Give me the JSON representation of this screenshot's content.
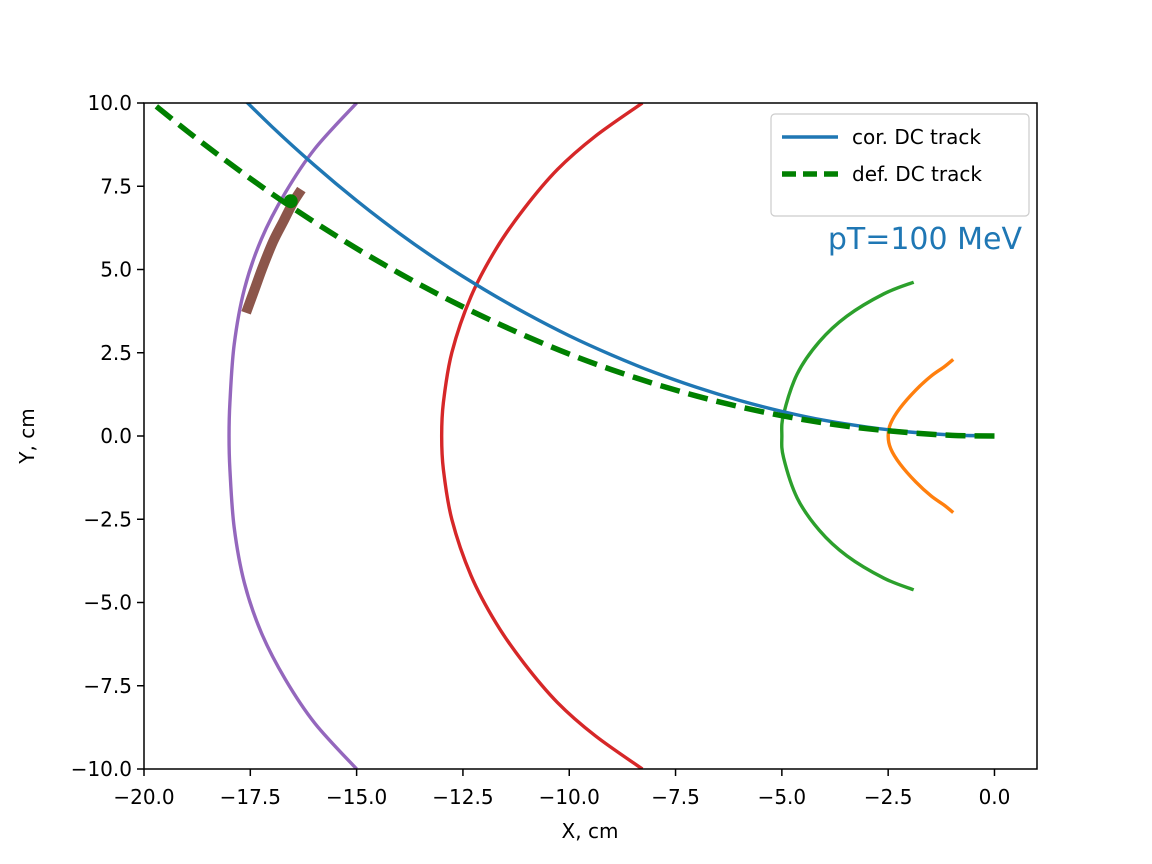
{
  "chart_data": {
    "type": "line",
    "title": "",
    "xlabel": "X, cm",
    "ylabel": "Y, cm",
    "xlim": [
      -20,
      1
    ],
    "ylim": [
      -10,
      10
    ],
    "xticks": [
      -20,
      -17.5,
      -15,
      -12.5,
      -10,
      -7.5,
      -5,
      -2.5,
      0
    ],
    "xtick_labels": [
      "−20.0",
      "−17.5",
      "−15.0",
      "−12.5",
      "−10.0",
      "−7.5",
      "−5.0",
      "−2.5",
      "0.0"
    ],
    "yticks": [
      -10,
      -7.5,
      -5,
      -2.5,
      0,
      2.5,
      5,
      7.5,
      10
    ],
    "ytick_labels": [
      "−10.0",
      "−7.5",
      "−5.0",
      "−2.5",
      "0.0",
      "2.5",
      "5.0",
      "7.5",
      "10.0"
    ],
    "grid": false,
    "legend_position": "top-right",
    "annotation": {
      "text": "pT=100 MeV",
      "color": "#1f77b4",
      "x": -4.7,
      "y": 5.9
    },
    "series": [
      {
        "name": "cor. DC track",
        "color": "#1f77b4",
        "style": "solid",
        "in_legend": true,
        "x": [
          0,
          -1,
          -2,
          -3,
          -4,
          -5,
          -6,
          -7,
          -8,
          -9,
          -10,
          -11,
          -12,
          -13,
          -14,
          -15,
          -16,
          -17,
          -18,
          -19
        ],
        "y": [
          0,
          0.03,
          0.12,
          0.27,
          0.47,
          0.74,
          1.07,
          1.46,
          1.91,
          2.43,
          3.01,
          3.67,
          4.4,
          5.2,
          6.09,
          7.07,
          8.14,
          9.3,
          10.57,
          11.96
        ]
      },
      {
        "name": "def. DC track",
        "color": "#008000",
        "style": "dashed",
        "in_legend": true,
        "x": [
          0,
          -1,
          -2,
          -3,
          -4,
          -5,
          -6,
          -7,
          -8,
          -9,
          -10,
          -11,
          -12,
          -13,
          -14,
          -15,
          -16,
          -17,
          -18,
          -19,
          -20
        ],
        "y": [
          0,
          0.02,
          0.1,
          0.22,
          0.39,
          0.61,
          0.88,
          1.2,
          1.57,
          1.99,
          2.46,
          2.99,
          3.57,
          4.2,
          4.89,
          5.63,
          6.43,
          7.28,
          8.2,
          9.17,
          10.2
        ]
      },
      {
        "name": "",
        "color": "#ff7f0e",
        "style": "solid",
        "in_legend": false,
        "x": [
          -0.97,
          -1.18,
          -1.49,
          -1.85,
          -2.22,
          -2.44,
          -2.5,
          -2.44,
          -2.22,
          -1.85,
          -1.49,
          -1.18,
          -0.97
        ],
        "y": [
          2.3,
          2.08,
          1.8,
          1.38,
          0.84,
          0.38,
          0,
          -0.38,
          -0.84,
          -1.38,
          -1.8,
          -2.08,
          -2.3
        ]
      },
      {
        "name": "",
        "color": "#2ca02c",
        "style": "solid",
        "in_legend": false,
        "x": [
          -1.9,
          -2.6,
          -3.47,
          -4.12,
          -4.64,
          -4.96,
          -5.0,
          -4.96,
          -4.64,
          -4.12,
          -3.47,
          -2.6,
          -1.9
        ],
        "y": [
          4.62,
          4.27,
          3.6,
          2.83,
          1.86,
          0.65,
          0,
          -0.65,
          -1.86,
          -2.83,
          -3.6,
          -4.27,
          -4.62
        ]
      },
      {
        "name": "",
        "color": "#d62728",
        "style": "solid",
        "in_legend": false,
        "x": [
          -8.28,
          -9.39,
          -10.28,
          -11.06,
          -11.72,
          -12.31,
          -12.76,
          -12.96,
          -13.0,
          -12.96,
          -12.76,
          -12.31,
          -11.72,
          -11.06,
          -10.28,
          -9.39,
          -8.28
        ],
        "y": [
          10,
          9.0,
          8.0,
          6.83,
          5.62,
          4.19,
          2.51,
          1.0,
          0,
          -1.0,
          -2.51,
          -4.19,
          -5.62,
          -6.83,
          -8.0,
          -9.0,
          -10
        ]
      },
      {
        "name": "",
        "color": "#9467bd",
        "style": "solid",
        "in_legend": false,
        "x": [
          -15.0,
          -15.98,
          -16.68,
          -17.24,
          -17.64,
          -17.88,
          -17.98,
          -18.0,
          -17.98,
          -17.88,
          -17.64,
          -17.24,
          -16.68,
          -15.98,
          -15.0
        ],
        "y": [
          10,
          8.63,
          7.3,
          5.91,
          4.41,
          2.74,
          1.0,
          0,
          -1.0,
          -2.74,
          -4.41,
          -5.91,
          -7.3,
          -8.63,
          -10
        ]
      },
      {
        "name": "",
        "color": "#8c564b",
        "style": "thick",
        "in_legend": false,
        "x": [
          -16.3,
          -16.5,
          -16.72,
          -16.96,
          -17.2,
          -17.4,
          -17.6
        ],
        "y": [
          7.4,
          7.0,
          6.45,
          5.85,
          5.1,
          4.4,
          3.7
        ]
      }
    ],
    "points": [
      {
        "x": -16.55,
        "y": 7.05,
        "color": "#008000"
      }
    ]
  }
}
